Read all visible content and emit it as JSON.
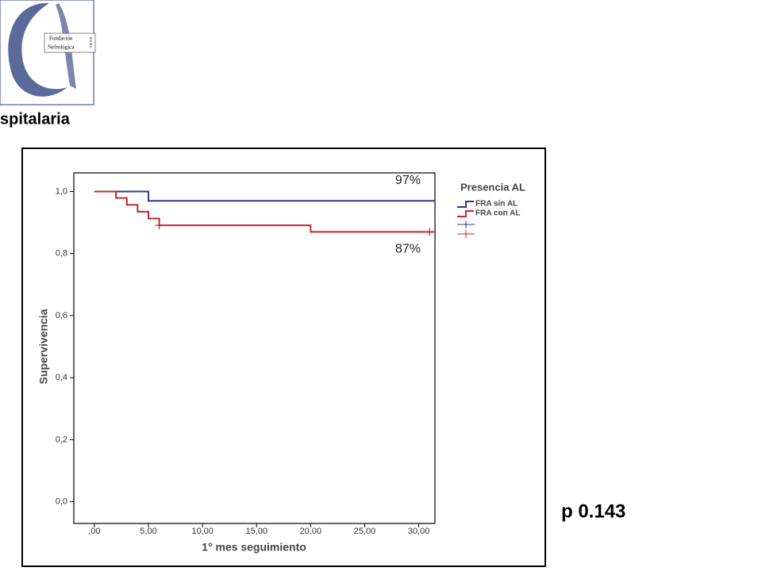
{
  "slide": {
    "heading": "spitalaria",
    "p_value": "p 0.143",
    "logo": [
      "Fundación",
      "Nefrológica",
      "H.U.R.S."
    ]
  },
  "chart_data": {
    "type": "step",
    "xlabel": "1° mes seguimiento",
    "ylabel": "Supervivencia",
    "legend_title": "Presencia AL",
    "annotations": [
      {
        "text": "97%",
        "x": 29,
        "y": 1.035
      },
      {
        "text": "87%",
        "x": 29,
        "y": 0.814
      }
    ],
    "xlim": [
      -1.9,
      31.5
    ],
    "ylim": [
      -0.07,
      1.06
    ],
    "xticks": [
      {
        "value": 0,
        "label": ",00"
      },
      {
        "value": 5,
        "label": "5,00"
      },
      {
        "value": 10,
        "label": "10,00"
      },
      {
        "value": 15,
        "label": "15,00"
      },
      {
        "value": 20,
        "label": "20,00"
      },
      {
        "value": 25,
        "label": "25,00"
      },
      {
        "value": 30,
        "label": "30,00"
      }
    ],
    "yticks": [
      {
        "value": 0,
        "label": "0,0"
      },
      {
        "value": 0.2,
        "label": "0,2"
      },
      {
        "value": 0.4,
        "label": "0,4"
      },
      {
        "value": 0.6,
        "label": "0,6"
      },
      {
        "value": 0.8,
        "label": "0,8"
      },
      {
        "value": 1,
        "label": "1,0"
      }
    ],
    "series": [
      {
        "name": "FRA sin AL",
        "color": "#2b3990",
        "x": [
          0,
          5,
          31.5
        ],
        "values": [
          1,
          0.97,
          0.97
        ]
      },
      {
        "name": "FRA con AL",
        "color": "#c1272d",
        "x": [
          0,
          2,
          3,
          4,
          5,
          6,
          20,
          31.5
        ],
        "values": [
          1,
          0.979,
          0.957,
          0.935,
          0.913,
          0.891,
          0.87,
          0.87
        ],
        "censored_x": [
          6,
          31
        ],
        "censored": [
          0.891,
          0.87
        ]
      }
    ]
  }
}
